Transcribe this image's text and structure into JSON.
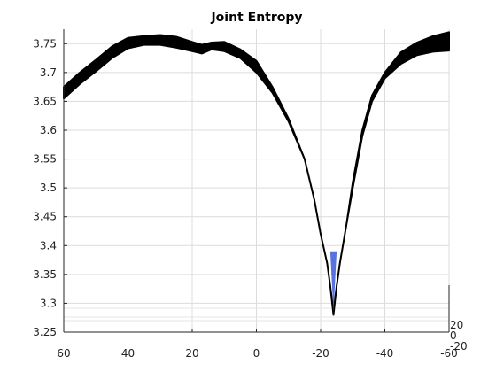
{
  "chart_data": {
    "type": "surface",
    "title": "Joint Entropy",
    "xlabel": "",
    "ylabel": "",
    "xlim": [
      60,
      -60
    ],
    "ylim": [
      3.25,
      3.775
    ],
    "x_ticks": [
      "60",
      "40",
      "20",
      "0",
      "-20",
      "-40",
      "-60"
    ],
    "y_ticks": [
      "3.25",
      "3.3",
      "3.35",
      "3.4",
      "3.45",
      "3.5",
      "3.55",
      "3.6",
      "3.65",
      "3.7",
      "3.75"
    ],
    "z_ticks": [
      "20",
      "0",
      "-20"
    ],
    "grid": true,
    "colors": {
      "band": "#000000",
      "highlight": "#3a5bd9"
    },
    "series": [
      {
        "x": [
          60,
          55,
          50,
          45,
          40,
          35,
          30,
          25,
          20,
          17,
          14,
          10,
          5,
          0,
          -5,
          -10,
          -15,
          -18,
          -20,
          -22,
          -23,
          -24,
          -25,
          -26,
          -28,
          -30,
          -33,
          -36,
          -40,
          -45,
          -50,
          -55,
          -60
        ],
        "upper": [
          3.675,
          3.7,
          3.722,
          3.745,
          3.76,
          3.763,
          3.765,
          3.762,
          3.753,
          3.748,
          3.752,
          3.753,
          3.74,
          3.72,
          3.675,
          3.62,
          3.55,
          3.48,
          3.42,
          3.37,
          3.33,
          3.285,
          3.33,
          3.37,
          3.435,
          3.51,
          3.6,
          3.66,
          3.7,
          3.735,
          3.752,
          3.763,
          3.77
        ],
        "lower": [
          3.655,
          3.68,
          3.702,
          3.725,
          3.742,
          3.748,
          3.748,
          3.743,
          3.737,
          3.733,
          3.74,
          3.737,
          3.725,
          3.7,
          3.665,
          3.615,
          3.55,
          3.48,
          3.42,
          3.37,
          3.33,
          3.28,
          3.33,
          3.37,
          3.435,
          3.5,
          3.59,
          3.65,
          3.69,
          3.715,
          3.73,
          3.736,
          3.738
        ]
      }
    ],
    "highlight": {
      "x": [
        -23,
        -25
      ],
      "y": [
        3.285,
        3.39
      ]
    }
  }
}
